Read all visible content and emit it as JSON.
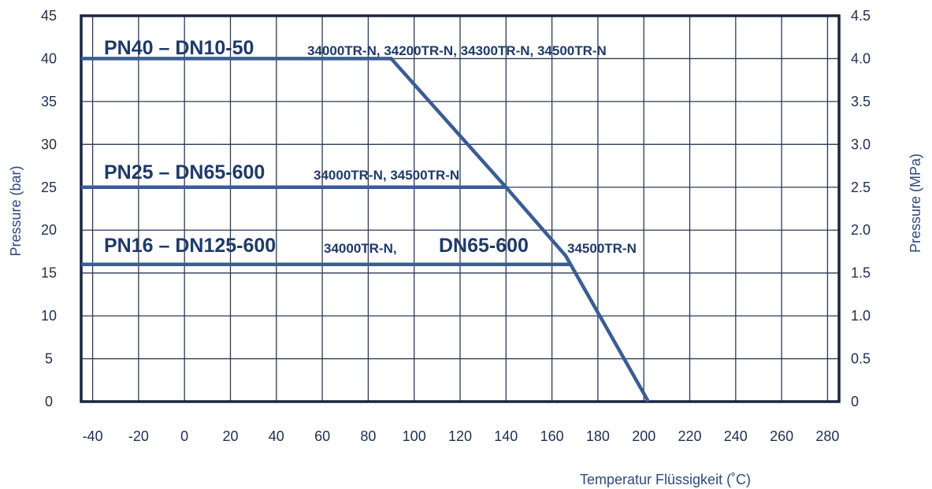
{
  "chart_data": {
    "type": "line",
    "xlabel": "Temperatur  Flüssigkeit (˚C)",
    "ylabel": "Pressure (bar)",
    "y2label": "Pressure (MPa)",
    "xlim": [
      -45,
      285
    ],
    "ylim": [
      0,
      45
    ],
    "y2lim": [
      0,
      4.5
    ],
    "grid": true,
    "x_ticks": [
      "-40",
      "-20",
      "0",
      "20",
      "40",
      "60",
      "80",
      "100",
      "120",
      "140",
      "160",
      "180",
      "200",
      "220",
      "240",
      "260",
      "280"
    ],
    "y_ticks": [
      "0",
      "5",
      "10",
      "15",
      "20",
      "25",
      "30",
      "35",
      "40",
      "45"
    ],
    "y2_ticks": [
      "0",
      "0.5",
      "1.0",
      "1.5",
      "2.0",
      "2.5",
      "3.0",
      "3.5",
      "4.0",
      "4.5"
    ],
    "line_color": "#3a5d94",
    "series": [
      {
        "id": "pn40",
        "label": "PN40 – DN10-50",
        "models": "34000TR-N, 34200TR-N, 34300TR-N, 34500TR-N",
        "points": [
          [
            -45,
            40
          ],
          [
            90,
            40
          ],
          [
            140,
            25
          ],
          [
            166,
            17
          ],
          [
            202,
            0
          ]
        ]
      },
      {
        "id": "pn25",
        "label": "PN25 – DN65-600",
        "models": "34000TR-N, 34500TR-N",
        "points": [
          [
            -45,
            25
          ],
          [
            140,
            25
          ]
        ]
      },
      {
        "id": "pn16",
        "label": "PN16 – DN125-600",
        "models": "34000TR-N,",
        "label2": "DN65-600",
        "models2": "34500TR-N",
        "points": [
          [
            -45,
            16
          ],
          [
            168,
            16
          ]
        ]
      }
    ]
  }
}
